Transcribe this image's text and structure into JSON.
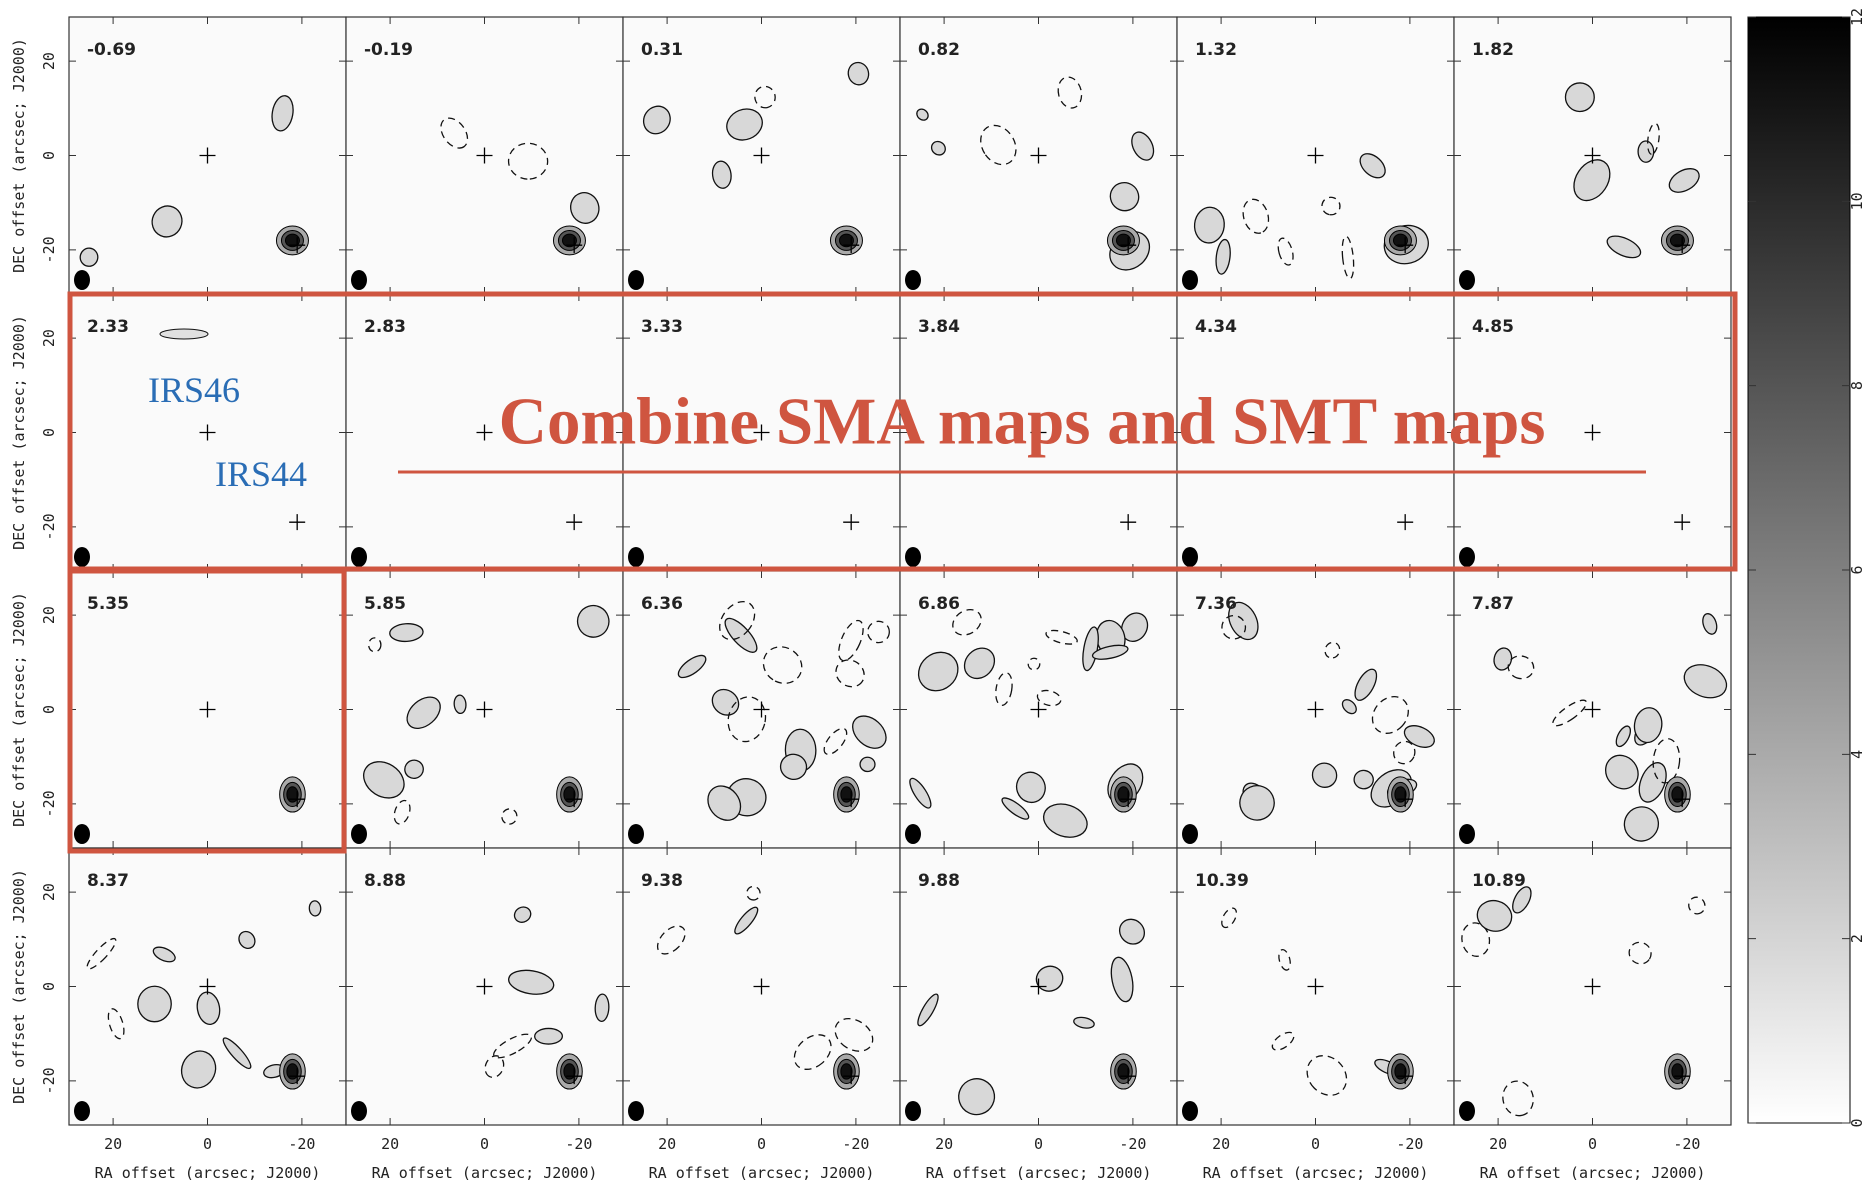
{
  "panels": [
    "-0.69",
    "-0.19",
    "0.31",
    "0.82",
    "1.32",
    "1.82",
    "2.33",
    "2.83",
    "3.33",
    "3.84",
    "4.34",
    "4.85",
    "5.35",
    "5.85",
    "6.36",
    "6.86",
    "7.36",
    "7.87",
    "8.37",
    "8.88",
    "9.38",
    "9.88",
    "10.39",
    "10.89"
  ],
  "axes": {
    "x_label": "RA offset (arcsec; J2000)",
    "y_label": "DEC offset (arcsec; J2000)",
    "x_ticks": [
      20,
      0,
      -20
    ],
    "y_ticks": [
      20,
      0,
      -20
    ]
  },
  "colorbar": {
    "ticks": [
      0,
      2,
      4,
      6,
      8,
      10,
      12
    ]
  },
  "annotations": {
    "title": "Combine SMA maps and SMT maps",
    "source_labels": [
      "IRS46",
      "IRS44"
    ]
  }
}
